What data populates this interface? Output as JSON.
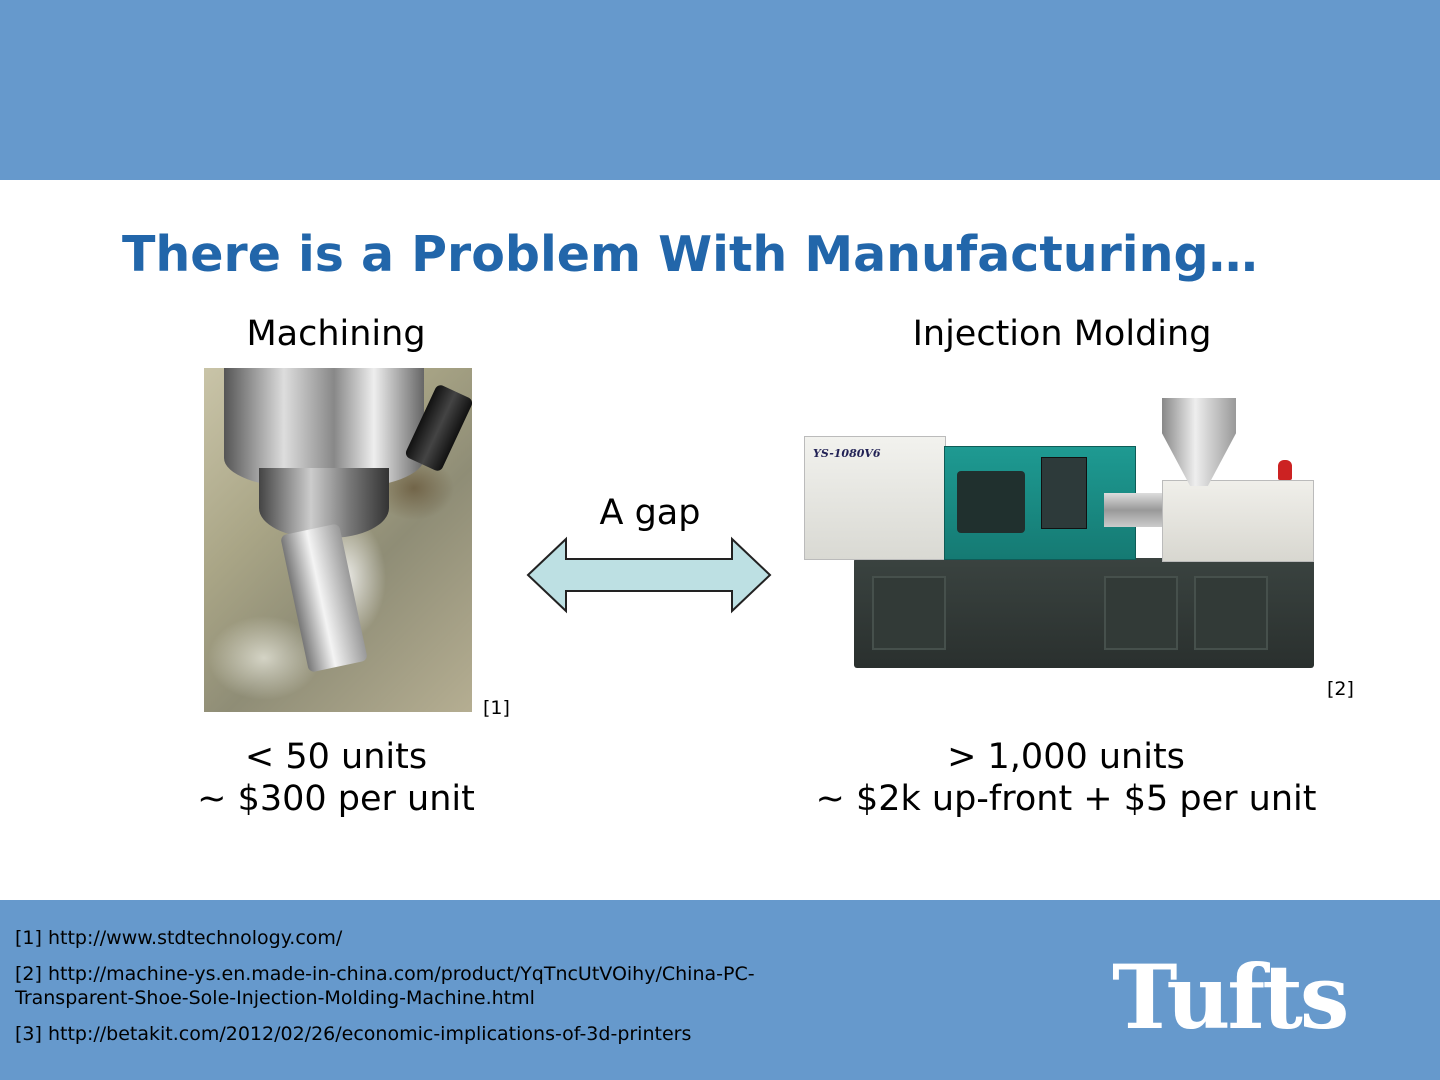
{
  "slide": {
    "title": "There is a Problem With Manufacturing…"
  },
  "machining": {
    "heading": "Machining",
    "ref": "[1]",
    "quantity": "< 50 units",
    "cost": "~ $300 per unit"
  },
  "gap": {
    "label": "A gap",
    "arrow_fill": "#bde0e3"
  },
  "injection_molding": {
    "heading": "Injection Molding",
    "machine_label": "YS-1080V6",
    "ref": "[2]",
    "quantity": "> 1,000 units",
    "cost": "~ $2k up-front + $5 per unit"
  },
  "footnotes": [
    {
      "text": "[1] http://www.stdtechnology.com/"
    },
    {
      "text": "[2] http://machine-ys.en.made-in-china.com/product/YqTncUtVOihy/China-PC-Transparent-Shoe-Sole-Injection-Molding-Machine.html"
    },
    {
      "text": "[3] http://betakit.com/2012/02/26/economic-implications-of-3d-printers"
    }
  ],
  "logo": {
    "text": "Tufts"
  },
  "colors": {
    "band": "#6699cc",
    "title": "#2266aa",
    "background": "#ffffff"
  }
}
